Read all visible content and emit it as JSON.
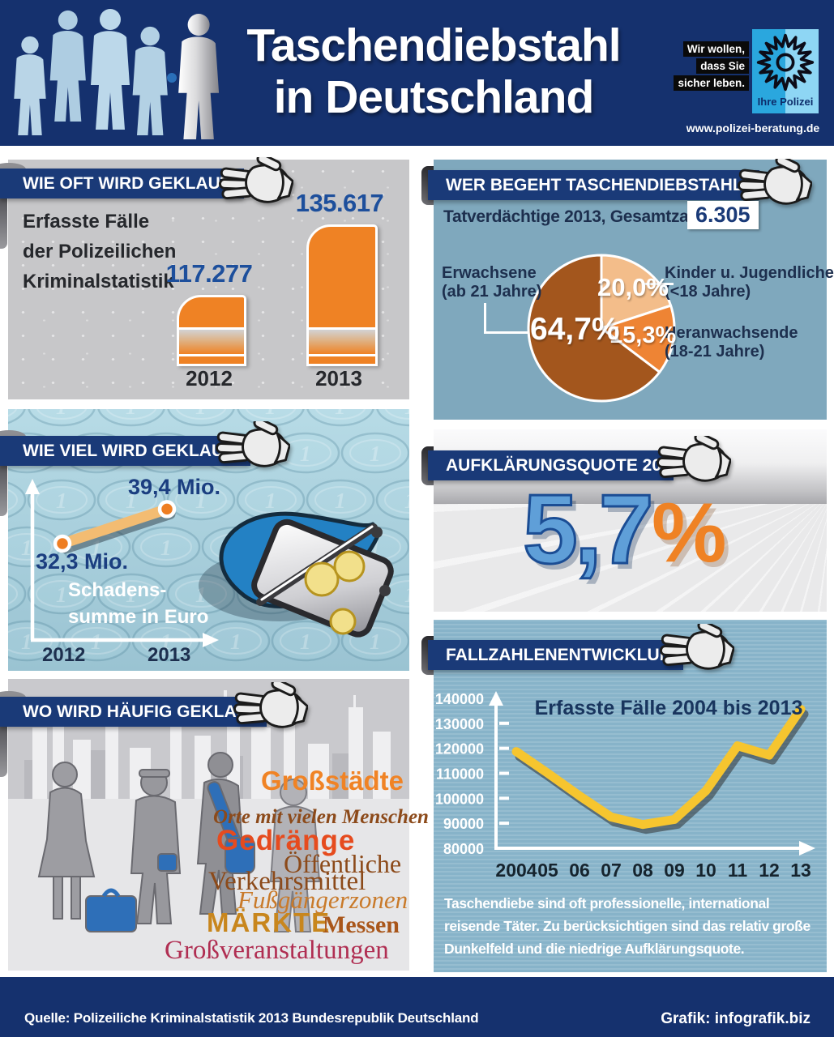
{
  "colors": {
    "navy": "#15316e",
    "ribbon_navy": "#1a3a78",
    "accent_orange": "#ef8224",
    "number_blue": "#1d4f9c",
    "steel_blue_bg": "#7fa8bd",
    "euro_bg": "#a4cbd8",
    "trend_bg": "#87b3c9",
    "gray_bg": "#c7c7c9",
    "line_yellow": "#f6c52f",
    "pie_colors": [
      "#f3bd8a",
      "#ee8434",
      "#a3561d"
    ]
  },
  "header": {
    "title_line1": "Taschendiebstahl",
    "title_line2": "in Deutschland",
    "logo": {
      "slogan_lines": [
        "Wir wollen,",
        "dass Sie",
        "sicher leben."
      ],
      "brand": "Ihre Polizei",
      "url": "www.polizei-beratung.de"
    }
  },
  "sections": {
    "how_often": {
      "title": "WIE OFT WIRD GEKLAUT?",
      "subtitle_lines": [
        "Erfasste Fälle",
        "der Polizeilichen",
        "Kriminalstatistik"
      ]
    },
    "who": {
      "title": "WER BEGEHT TASCHENDIEBSTAHL?",
      "lead": "Tatverdächtige 2013, Gesamtzahl:",
      "total": "6.305",
      "labels": {
        "adults_line1": "Erwachsene",
        "adults_line2": "(ab 21 Jahre)",
        "kids_line1": "Kinder u. Jugendliche",
        "kids_line2": "(<18 Jahre)",
        "teens_line1": "Heranwachsende",
        "teens_line2": "(18-21 Jahre)"
      }
    },
    "how_much": {
      "title": "WIE VIEL WIRD GEKLAUT?",
      "note_lines": [
        "Schadens-",
        "summe in Euro"
      ]
    },
    "clearance": {
      "title": "AUFKLÄRUNGSQUOTE 2013",
      "value": "5,7",
      "unit": "%"
    },
    "where": {
      "title": "WO WIRD HÄUFIG GEKLAUT?",
      "words": [
        {
          "text": "Großstädte",
          "style": "w-grossstaedte"
        },
        {
          "text": "Orte mit vielen Menschen",
          "style": "w-orte"
        },
        {
          "text": "Gedränge",
          "style": "w-gedraenge"
        },
        {
          "text": "Öffentliche",
          "style": "w-oeffentliche"
        },
        {
          "text": "Verkehrsmittel",
          "style": "w-verkehrsmittel"
        },
        {
          "text": "Fußgängerzonen",
          "style": "w-fussgaenger"
        },
        {
          "text": "MÄRKTE",
          "style": "w-maerkte"
        },
        {
          "text": "Messen",
          "style": "w-messen"
        },
        {
          "text": "Großveranstaltungen",
          "style": "w-grossveranstaltungen"
        }
      ]
    },
    "trend": {
      "title": "FALLZAHLENENTWICKLUNG",
      "note_lines": [
        "Taschendiebe sind oft professionelle, international",
        "reisende Täter. Zu berücksichtigen sind das relativ große",
        "Dunkelfeld und die niedrige Aufklärungsquote."
      ]
    }
  },
  "footer": {
    "source": "Quelle: Polizeiliche Kriminalstatistik 2013 Bundesrepublik Deutschland",
    "credit": "Grafik: infografik.biz"
  },
  "chart_data": [
    {
      "id": "recorded_cases_bar",
      "type": "bar",
      "title": "Erfasste Fälle der Polizeilichen Kriminalstatistik",
      "categories": [
        "2012",
        "2013"
      ],
      "values": [
        117277,
        135617
      ],
      "display": [
        "117.277",
        "135.617"
      ]
    },
    {
      "id": "suspects_pie",
      "type": "pie",
      "title": "Tatverdächtige 2013, Gesamtzahl: 6.305",
      "total": 6305,
      "slices": [
        {
          "label": "Kinder u. Jugendliche (<18 Jahre)",
          "value": 20.0,
          "display": "20,0%",
          "color": "#f3bd8a"
        },
        {
          "label": "Heranwachsende (18-21 Jahre)",
          "value": 15.3,
          "display": "15,3%",
          "color": "#ee8434"
        },
        {
          "label": "Erwachsene (ab 21 Jahre)",
          "value": 64.7,
          "display": "64,7%",
          "color": "#a3561d"
        }
      ]
    },
    {
      "id": "damage_sum_line",
      "type": "line",
      "title": "Schadenssumme in Euro",
      "categories": [
        "2012",
        "2013"
      ],
      "values": [
        32.3,
        39.4
      ],
      "unit": "Mio. Euro",
      "display": [
        "32,3 Mio.",
        "39,4 Mio."
      ]
    },
    {
      "id": "cases_trend_line",
      "type": "line",
      "title": "Erfasste Fälle 2004 bis 2013",
      "categories": [
        "2004",
        "05",
        "06",
        "07",
        "08",
        "09",
        "10",
        "11",
        "12",
        "13"
      ],
      "values": [
        118700,
        110000,
        101000,
        92500,
        89500,
        91500,
        103000,
        121000,
        117277,
        135617
      ],
      "ylim": [
        80000,
        140000
      ],
      "y_ticks": [
        "140000",
        "130000",
        "120000",
        "110000",
        "100000",
        "90000",
        "80000"
      ]
    }
  ]
}
